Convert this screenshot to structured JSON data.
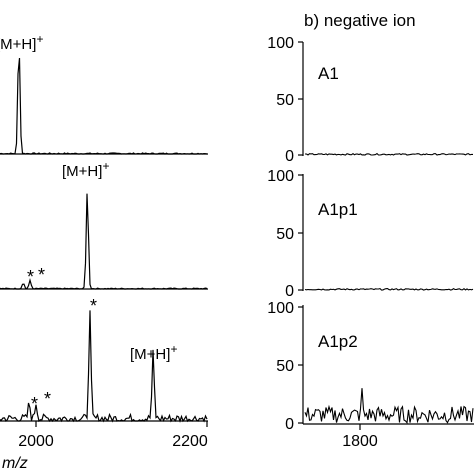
{
  "panel_b_title": "b) negative ion",
  "chart_data": [
    {
      "type": "line",
      "panel": "positive-top",
      "x_range": [
        1900,
        2200
      ],
      "y_range": [
        0,
        100
      ],
      "peaks": [
        {
          "x": 1980,
          "y": 100
        }
      ],
      "annotations": [
        {
          "text": "[M+H]+",
          "x": 1980
        }
      ]
    },
    {
      "type": "line",
      "panel": "positive-middle",
      "x_range": [
        1900,
        2200
      ],
      "y_range": [
        0,
        100
      ],
      "peaks": [
        {
          "x": 2060,
          "y": 100
        },
        {
          "x": 1985,
          "y": 6
        },
        {
          "x": 1993,
          "y": 8
        }
      ],
      "annotations": [
        {
          "text": "[M+H]+",
          "x": 2060
        },
        {
          "text": "*",
          "x": 1985
        },
        {
          "text": "*",
          "x": 1993
        }
      ]
    },
    {
      "type": "line",
      "panel": "positive-bottom",
      "x_range": [
        1900,
        2200
      ],
      "y_range": [
        0,
        100
      ],
      "peaks": [
        {
          "x": 2063,
          "y": 100
        },
        {
          "x": 2137,
          "y": 62
        },
        {
          "x": 1992,
          "y": 14
        },
        {
          "x": 2000,
          "y": 15
        }
      ],
      "annotations": [
        {
          "text": "*",
          "x": 2063
        },
        {
          "text": "[M+H]+",
          "x": 2137
        },
        {
          "text": "*",
          "x": 1992
        },
        {
          "text": "*",
          "x": 2000
        }
      ],
      "x_ticks": [
        "2000",
        "2200"
      ],
      "xlabel": "m/z"
    },
    {
      "type": "line",
      "panel": "negative-A1",
      "label": "A1",
      "y_range": [
        0,
        100
      ],
      "y_ticks": [
        "100",
        "50",
        "0"
      ],
      "noise_level": 1
    },
    {
      "type": "line",
      "panel": "negative-A1p1",
      "label": "A1p1",
      "y_range": [
        0,
        100
      ],
      "y_ticks": [
        "100",
        "50",
        "0"
      ],
      "noise_level": 1
    },
    {
      "type": "line",
      "panel": "negative-A1p2",
      "label": "A1p2",
      "y_range": [
        0,
        100
      ],
      "y_ticks": [
        "100",
        "50",
        "0"
      ],
      "noise_level": 12,
      "x_ticks": [
        "1800"
      ]
    }
  ]
}
